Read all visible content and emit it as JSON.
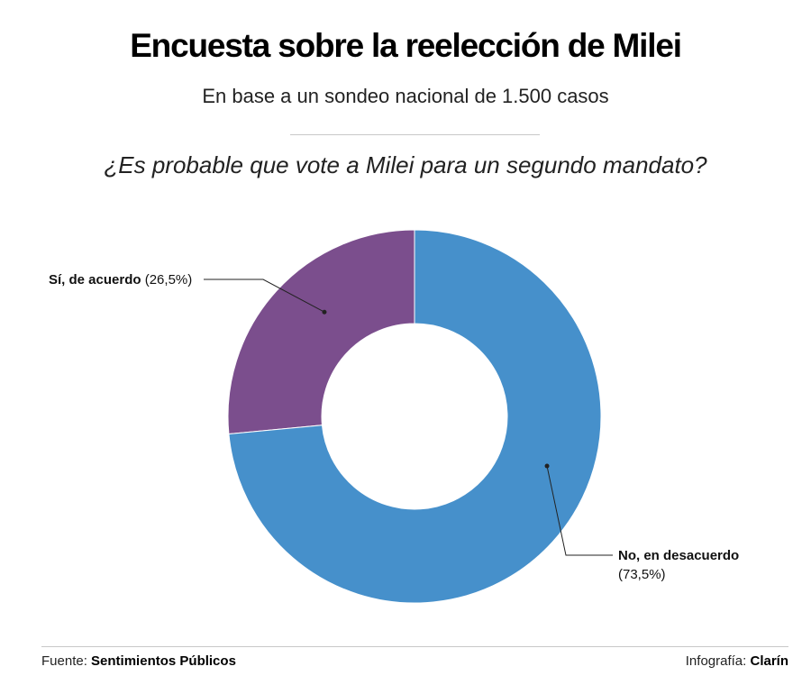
{
  "header": {
    "title": "Encuesta sobre la reelección de Milei",
    "subtitle": "En base a un sondeo nacional de 1.500 casos",
    "question": "¿Es probable que vote a Milei para un segundo mandato?"
  },
  "chart_data": {
    "type": "pie",
    "variant": "donut",
    "title": "",
    "slices": [
      {
        "name": "Sí, de acuerdo",
        "value": 26.5,
        "value_label": "(26,5%)",
        "color": "#7b4e8d"
      },
      {
        "name": "No, en desacuerdo",
        "value": 73.5,
        "value_label": "(73,5%)",
        "color": "#4690cb"
      }
    ],
    "legend": "none"
  },
  "footer": {
    "source_prefix": "Fuente:",
    "source_name": "Sentimientos Públicos",
    "credit_prefix": "Infografía:",
    "credit_name": "Clarín"
  }
}
